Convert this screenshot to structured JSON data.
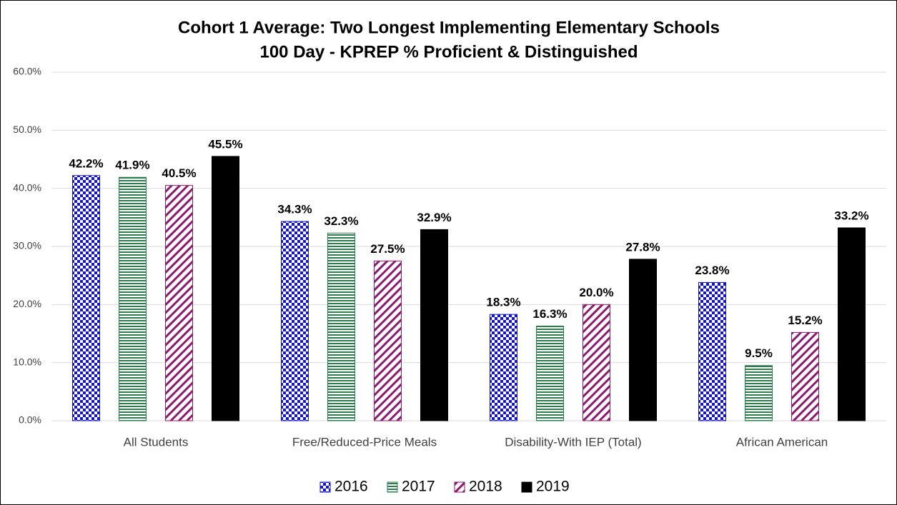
{
  "chart_data": {
    "type": "bar",
    "title": "Cohort 1 Average: Two Longest Implementing Elementary Schools",
    "subtitle": "100 Day - KPREP % Proficient & Distinguished",
    "categories": [
      "All Students",
      "Free/Reduced-Price Meals",
      "Disability-With IEP (Total)",
      "African American"
    ],
    "series": [
      {
        "name": "2016",
        "color": "#1414c8",
        "pattern": "checker",
        "values": [
          42.2,
          34.3,
          18.3,
          23.8
        ],
        "value_labels": [
          "42.2%",
          "34.3%",
          "18.3%",
          "23.8%"
        ]
      },
      {
        "name": "2017",
        "color": "#2e7d4f",
        "pattern": "horizontal",
        "values": [
          41.9,
          32.3,
          16.3,
          9.5
        ],
        "value_labels": [
          "41.9%",
          "32.3%",
          "16.3%",
          "9.5%"
        ]
      },
      {
        "name": "2018",
        "color": "#8e1a70",
        "pattern": "diagonal",
        "values": [
          40.5,
          27.5,
          20.0,
          15.2
        ],
        "value_labels": [
          "40.5%",
          "27.5%",
          "20.0%",
          "15.2%"
        ]
      },
      {
        "name": "2019",
        "color": "#000000",
        "pattern": "solid",
        "values": [
          45.5,
          32.9,
          27.8,
          33.2
        ],
        "value_labels": [
          "45.5%",
          "32.9%",
          "27.8%",
          "33.2%"
        ]
      }
    ],
    "ylim": [
      0,
      60
    ],
    "yticks": [
      {
        "value": 0,
        "label": "0.0%"
      },
      {
        "value": 10,
        "label": "10.0%"
      },
      {
        "value": 20,
        "label": "20.0%"
      },
      {
        "value": 30,
        "label": "30.0%"
      },
      {
        "value": 40,
        "label": "40.0%"
      },
      {
        "value": 50,
        "label": "50.0%"
      },
      {
        "value": 60,
        "label": "60.0%"
      }
    ],
    "grid": true,
    "legend": "bottom"
  }
}
